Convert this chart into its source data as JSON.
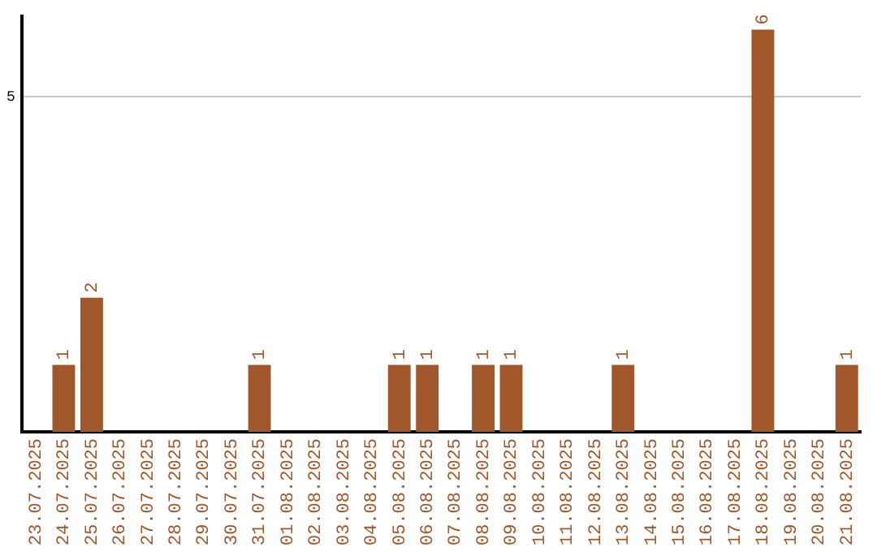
{
  "chart_data": {
    "type": "bar",
    "categories": [
      "23.07.2025",
      "24.07.2025",
      "25.07.2025",
      "26.07.2025",
      "27.07.2025",
      "28.07.2025",
      "29.07.2025",
      "30.07.2025",
      "31.07.2025",
      "01.08.2025",
      "02.08.2025",
      "03.08.2025",
      "04.08.2025",
      "05.08.2025",
      "06.08.2025",
      "07.08.2025",
      "08.08.2025",
      "09.08.2025",
      "10.08.2025",
      "11.08.2025",
      "12.08.2025",
      "13.08.2025",
      "14.08.2025",
      "15.08.2025",
      "16.08.2025",
      "17.08.2025",
      "18.08.2025",
      "19.08.2025",
      "20.08.2025",
      "21.08.2025"
    ],
    "values": [
      0,
      1,
      2,
      0,
      0,
      0,
      0,
      0,
      1,
      0,
      0,
      0,
      0,
      1,
      1,
      0,
      1,
      1,
      0,
      0,
      0,
      1,
      0,
      0,
      0,
      0,
      6,
      0,
      0,
      1
    ],
    "value_labels": [
      null,
      "1",
      "2",
      null,
      null,
      null,
      null,
      null,
      "1",
      null,
      null,
      null,
      null,
      "1",
      "1",
      null,
      "1",
      "1",
      null,
      null,
      null,
      "1",
      null,
      null,
      null,
      null,
      "6",
      null,
      null,
      "1"
    ],
    "color": "#a0572a",
    "ylim": [
      0,
      6.2
    ],
    "yticks": [
      5
    ],
    "grid": "y",
    "legend": false
  }
}
